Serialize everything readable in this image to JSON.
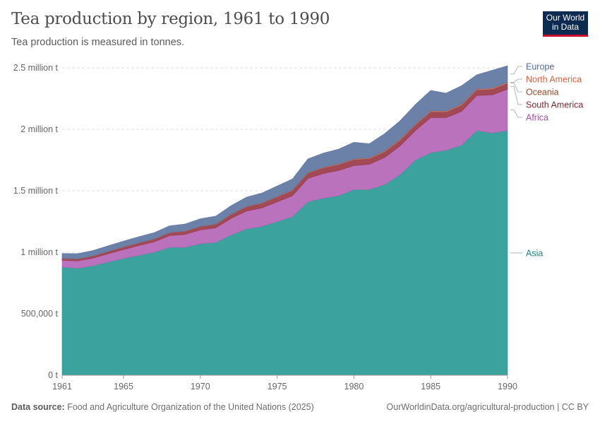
{
  "header": {
    "title": "Tea production by region, 1961 to 1990",
    "subtitle": "Tea production is measured in tonnes.",
    "logo_line1": "Our World",
    "logo_line2": "in Data"
  },
  "footer": {
    "source_label": "Data source:",
    "source_text": "Food and Agriculture Organization of the United Nations (2025)",
    "url_text": "OurWorldinData.org/agricultural-production | CC BY"
  },
  "colors": {
    "Asia": "#2a9a95",
    "Africa": "#b466b6",
    "South America": "#9a3a48",
    "Oceania": "#b5705a",
    "North America": "#e0603f",
    "Europe": "#5f76a0"
  },
  "label_colors": {
    "Asia": "#1b8585",
    "Africa": "#a54fa8",
    "South America": "#7d2a33",
    "Oceania": "#9a4a28",
    "North America": "#e0603f",
    "Europe": "#4c6a9c"
  },
  "chart_data": {
    "type": "area",
    "stacked": true,
    "x": [
      1961,
      1962,
      1963,
      1964,
      1965,
      1966,
      1967,
      1968,
      1969,
      1970,
      1971,
      1972,
      1973,
      1974,
      1975,
      1976,
      1977,
      1978,
      1979,
      1980,
      1981,
      1982,
      1983,
      1984,
      1985,
      1986,
      1987,
      1988,
      1989,
      1990
    ],
    "x_ticks": [
      "1961",
      "1965",
      "1970",
      "1975",
      "1980",
      "1985",
      "1990"
    ],
    "y_ticks": [
      "0 t",
      "500,000 t",
      "1 million t",
      "1.5 million t",
      "2 million t",
      "2.5 million t"
    ],
    "ylim": [
      0,
      2500000
    ],
    "grid": true,
    "legend": "right-labels",
    "series": [
      {
        "name": "Asia",
        "values": [
          880000,
          870000,
          890000,
          920000,
          950000,
          975000,
          1000000,
          1040000,
          1040000,
          1070000,
          1080000,
          1140000,
          1190000,
          1210000,
          1250000,
          1290000,
          1410000,
          1440000,
          1460000,
          1510000,
          1510000,
          1550000,
          1630000,
          1750000,
          1810000,
          1830000,
          1870000,
          1990000,
          1970000,
          1990000
        ]
      },
      {
        "name": "Africa",
        "values": [
          55000,
          60000,
          62000,
          68000,
          72000,
          80000,
          85000,
          95000,
          105000,
          112000,
          118000,
          135000,
          145000,
          150000,
          160000,
          170000,
          190000,
          200000,
          205000,
          195000,
          205000,
          220000,
          235000,
          240000,
          285000,
          265000,
          275000,
          285000,
          310000,
          335000
        ]
      },
      {
        "name": "South America",
        "values": [
          15000,
          16000,
          17000,
          18000,
          20000,
          21000,
          22000,
          24000,
          25000,
          27000,
          29000,
          32000,
          35000,
          38000,
          40000,
          42000,
          44000,
          46000,
          48000,
          48000,
          46000,
          47000,
          46000,
          44000,
          48000,
          46000,
          50000,
          45000,
          46000,
          48000
        ]
      },
      {
        "name": "Oceania",
        "values": [
          500,
          600,
          700,
          800,
          900,
          1000,
          1200,
          1400,
          1600,
          1800,
          2000,
          2500,
          3000,
          3500,
          4000,
          4500,
          5000,
          5500,
          6000,
          6500,
          7000,
          7500,
          8000,
          8000,
          8500,
          8500,
          9000,
          9000,
          9000,
          9000
        ]
      },
      {
        "name": "North America",
        "values": [
          100,
          100,
          100,
          100,
          100,
          100,
          100,
          100,
          100,
          100,
          100,
          100,
          100,
          100,
          100,
          100,
          100,
          100,
          100,
          100,
          100,
          100,
          100,
          100,
          100,
          100,
          100,
          100,
          100,
          100
        ]
      },
      {
        "name": "Europe",
        "values": [
          40000,
          42000,
          44000,
          46000,
          48000,
          50000,
          52000,
          55000,
          58000,
          62000,
          65000,
          70000,
          75000,
          80000,
          85000,
          90000,
          110000,
          115000,
          120000,
          135000,
          115000,
          140000,
          150000,
          160000,
          165000,
          145000,
          150000,
          115000,
          145000,
          135000
        ]
      }
    ]
  }
}
